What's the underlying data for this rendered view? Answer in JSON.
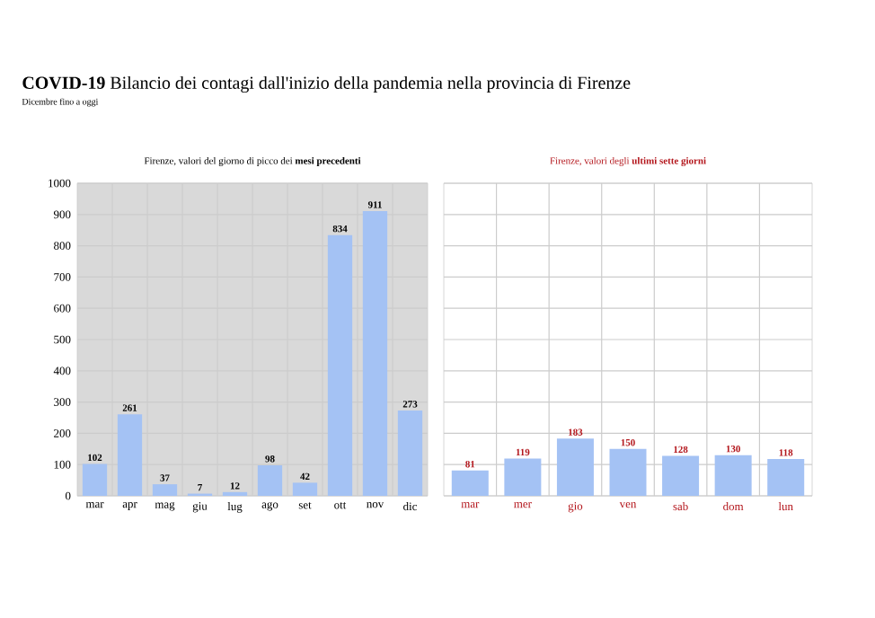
{
  "chart_data": [
    {
      "type": "bar",
      "title": "**COVID-19** Bilancio dei contagi dall'inizio della pandemia nella provincia di Firenze",
      "subtitle": "Dicembre fino a oggi",
      "annotations": [
        "Firenze, valori del giorno di picco dei **mesi precedenti**"
      ],
      "categories": [
        "mar",
        "apr",
        "mag",
        "giu",
        "lug",
        "ago",
        "set",
        "ott",
        "nov",
        "dic"
      ],
      "values": [
        102,
        261,
        37,
        7,
        12,
        98,
        42,
        834,
        911,
        273
      ],
      "color": "#a4c2f4",
      "ylim": [
        0,
        1000
      ],
      "yticks": [
        0,
        100,
        200,
        300,
        400,
        500,
        600,
        700,
        800,
        900,
        1000
      ],
      "grid": true,
      "data_labels": true
    },
    {
      "type": "bar",
      "annotations": [
        "Firenze, valori degli **ultimi sette giorni**"
      ],
      "categories": [
        "mar",
        "mer",
        "gio",
        "ven",
        "sab",
        "dom",
        "lun"
      ],
      "values": [
        81,
        119,
        183,
        150,
        128,
        130,
        118
      ],
      "color": "#a4c2f4",
      "ylim": [
        0,
        1000
      ],
      "yticks": [
        0,
        100,
        200,
        300,
        400,
        500,
        600,
        700,
        800,
        900,
        1000
      ],
      "tick_labels": "x",
      "grid": true,
      "data_labels": true
    }
  ]
}
